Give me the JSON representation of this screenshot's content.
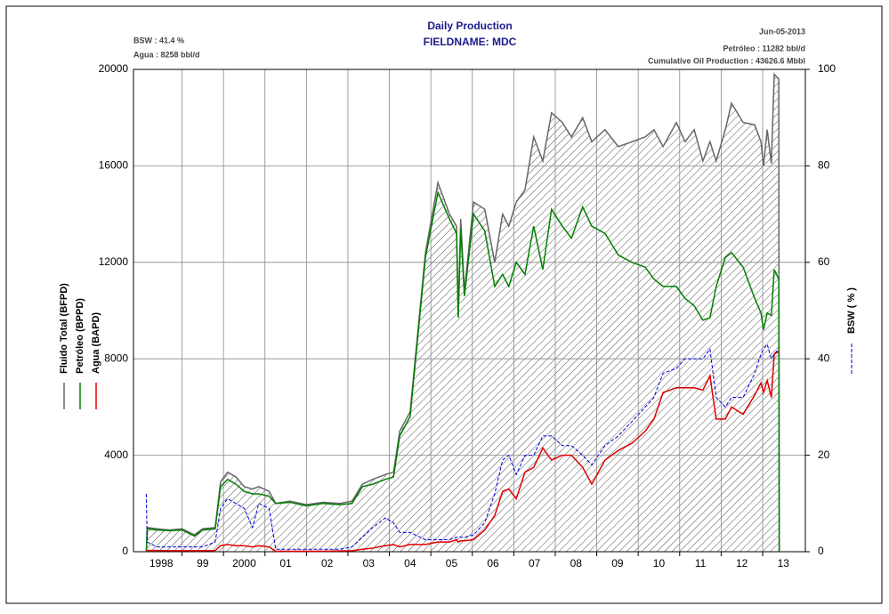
{
  "chart_data": {
    "type": "line",
    "title": "Daily Production",
    "subtitle": "FIELDNAME: MDC",
    "annotations": [
      "BSW : 41.4 %",
      "Agua : 8258 bbl/d",
      "Jun-05-2013",
      "Petróleo : 11282 bbl/d",
      "Cumulative Oil Production : 43626.6 Mbbl"
    ],
    "x": [
      1998.14,
      1998.16,
      1998.4,
      1998.7,
      1999.0,
      1999.3,
      1999.5,
      1999.8,
      1999.93,
      2000.1,
      2000.3,
      2000.5,
      2000.7,
      2000.85,
      2001.1,
      2001.26,
      2001.6,
      2002.0,
      2002.4,
      2002.8,
      2003.1,
      2003.35,
      2003.6,
      2003.9,
      2004.1,
      2004.25,
      2004.5,
      2004.87,
      2005.17,
      2005.45,
      2005.62,
      2005.66,
      2005.72,
      2005.81,
      2006.03,
      2006.3,
      2006.54,
      2006.73,
      2006.88,
      2007.06,
      2007.27,
      2007.48,
      2007.7,
      2007.91,
      2008.17,
      2008.39,
      2008.66,
      2008.88,
      2009.2,
      2009.52,
      2009.85,
      2010.17,
      2010.38,
      2010.6,
      2010.92,
      2011.13,
      2011.35,
      2011.56,
      2011.73,
      2011.88,
      2012.1,
      2012.25,
      2012.53,
      2012.81,
      2012.96,
      2013.02,
      2013.11,
      2013.21,
      2013.28,
      2013.39,
      2013.4
    ],
    "series": [
      {
        "name": "Fluido Total  (BFPD)",
        "color": "#666666",
        "values": [
          0,
          1000,
          950,
          900,
          950,
          700,
          950,
          1000,
          2900,
          3300,
          3100,
          2700,
          2600,
          2700,
          2500,
          2000,
          2100,
          1950,
          2050,
          2000,
          2100,
          2800,
          3000,
          3200,
          3300,
          5000,
          5800,
          12400,
          15300,
          14000,
          13500,
          9800,
          13800,
          10800,
          14500,
          14200,
          12000,
          14000,
          13500,
          14500,
          15000,
          17200,
          16200,
          18200,
          17800,
          17200,
          18000,
          17000,
          17500,
          16800,
          17000,
          17200,
          17500,
          16800,
          17800,
          17000,
          17500,
          16200,
          17000,
          16200,
          17500,
          18600,
          17800,
          17700,
          17000,
          16000,
          17500,
          16100,
          19800,
          19600,
          0
        ]
      },
      {
        "name": "Petróleo (BPPD)",
        "color": "#008000",
        "values": [
          0,
          950,
          900,
          870,
          900,
          650,
          900,
          950,
          2700,
          3000,
          2800,
          2500,
          2400,
          2400,
          2300,
          2000,
          2050,
          1900,
          2000,
          1950,
          2000,
          2700,
          2800,
          3000,
          3100,
          4800,
          5600,
          12200,
          14900,
          13800,
          13200,
          9700,
          13400,
          10600,
          14000,
          13300,
          11000,
          11500,
          11000,
          12000,
          11500,
          13500,
          11700,
          14200,
          13500,
          13000,
          14300,
          13500,
          13200,
          12300,
          12000,
          11800,
          11300,
          11000,
          11000,
          10500,
          10200,
          9600,
          9700,
          11000,
          12200,
          12400,
          11800,
          10500,
          9900,
          9200,
          9900,
          9800,
          11700,
          11300,
          0
        ]
      },
      {
        "name": "Agua (BAPD)",
        "color": "#e00000",
        "values": [
          0,
          50,
          50,
          40,
          40,
          40,
          40,
          50,
          250,
          300,
          250,
          250,
          200,
          250,
          200,
          20,
          20,
          20,
          20,
          30,
          40,
          100,
          150,
          250,
          300,
          200,
          300,
          300,
          400,
          400,
          500,
          400,
          450,
          450,
          500,
          900,
          1500,
          2500,
          2600,
          2200,
          3300,
          3500,
          4300,
          3800,
          4000,
          4000,
          3500,
          2800,
          3800,
          4200,
          4500,
          5000,
          5500,
          6600,
          6800,
          6800,
          6800,
          6700,
          7300,
          5500,
          5500,
          6000,
          5700,
          6500,
          7000,
          6600,
          7100,
          6400,
          8200,
          8300,
          null
        ]
      },
      {
        "name": "BSW ( % )",
        "color": "#0000dd",
        "axis": "y2",
        "values": [
          12,
          2,
          1,
          1,
          1,
          1,
          1,
          2,
          9,
          11,
          10,
          9,
          5,
          10,
          9,
          0.5,
          0.5,
          0.5,
          0.5,
          0.5,
          1,
          3,
          5,
          7,
          6,
          4,
          4,
          2.5,
          2.5,
          2.5,
          3,
          3,
          3,
          3,
          3.5,
          6,
          12,
          19,
          20,
          16,
          20,
          20,
          24,
          24,
          22,
          22,
          20,
          18,
          22,
          24,
          27,
          30,
          32,
          37,
          38,
          40,
          40,
          40,
          42,
          32,
          30,
          32,
          32,
          37,
          41,
          42,
          43,
          40,
          41,
          42,
          null
        ]
      }
    ],
    "xlim": [
      1997.83,
      2014.03
    ],
    "xticks": [
      {
        "value": 1998.5,
        "label": "1998"
      },
      {
        "value": 1999.5,
        "label": "99"
      },
      {
        "value": 2000.5,
        "label": "2000"
      },
      {
        "value": 2001.5,
        "label": "01"
      },
      {
        "value": 2002.5,
        "label": "02"
      },
      {
        "value": 2003.5,
        "label": "03"
      },
      {
        "value": 2004.5,
        "label": "04"
      },
      {
        "value": 2005.5,
        "label": "05"
      },
      {
        "value": 2006.5,
        "label": "06"
      },
      {
        "value": 2007.5,
        "label": "07"
      },
      {
        "value": 2008.5,
        "label": "08"
      },
      {
        "value": 2009.5,
        "label": "09"
      },
      {
        "value": 2010.5,
        "label": "10"
      },
      {
        "value": 2011.5,
        "label": "11"
      },
      {
        "value": 2012.5,
        "label": "12"
      },
      {
        "value": 2013.5,
        "label": "13"
      }
    ],
    "xgrid": [
      1999,
      2000,
      2001,
      2002,
      2003,
      2004,
      2005,
      2006,
      2007,
      2008,
      2009,
      2010,
      2011,
      2012,
      2013
    ],
    "ylim": [
      0,
      20000
    ],
    "yticks": [
      0,
      4000,
      8000,
      12000,
      16000,
      20000
    ],
    "y2lim": [
      0,
      100
    ],
    "y2ticks": [
      0,
      20,
      40,
      60,
      80,
      100
    ],
    "grid": true
  }
}
